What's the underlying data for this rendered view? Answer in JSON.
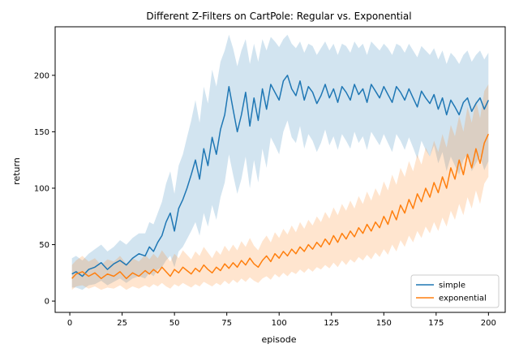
{
  "chart_data": {
    "type": "line",
    "title": "Different Z-Filters on CartPole: Regular vs. Exponential",
    "xlabel": "episode",
    "ylabel": "return",
    "xlim": [
      -7,
      208
    ],
    "ylim": [
      -10,
      243
    ],
    "xticks": [
      0,
      25,
      50,
      75,
      100,
      125,
      150,
      175,
      200
    ],
    "yticks": [
      0,
      50,
      100,
      150,
      200
    ],
    "legend_position": "lower-right",
    "series": [
      {
        "name": "simple",
        "color": "#1f77b4",
        "band_color": "#1f77b4",
        "band_opacity": 0.2,
        "points": [
          [
            1,
            24
          ],
          [
            3,
            26
          ],
          [
            6,
            22
          ],
          [
            9,
            28
          ],
          [
            12,
            30
          ],
          [
            15,
            34
          ],
          [
            18,
            28
          ],
          [
            21,
            33
          ],
          [
            24,
            36
          ],
          [
            27,
            32
          ],
          [
            30,
            38
          ],
          [
            33,
            42
          ],
          [
            36,
            40
          ],
          [
            38,
            48
          ],
          [
            40,
            44
          ],
          [
            42,
            52
          ],
          [
            44,
            58
          ],
          [
            46,
            70
          ],
          [
            48,
            78
          ],
          [
            50,
            62
          ],
          [
            52,
            82
          ],
          [
            54,
            90
          ],
          [
            56,
            100
          ],
          [
            58,
            112
          ],
          [
            60,
            125
          ],
          [
            62,
            108
          ],
          [
            64,
            135
          ],
          [
            66,
            120
          ],
          [
            68,
            145
          ],
          [
            70,
            130
          ],
          [
            72,
            152
          ],
          [
            74,
            165
          ],
          [
            76,
            190
          ],
          [
            78,
            170
          ],
          [
            80,
            150
          ],
          [
            82,
            165
          ],
          [
            84,
            185
          ],
          [
            86,
            155
          ],
          [
            88,
            180
          ],
          [
            90,
            160
          ],
          [
            92,
            188
          ],
          [
            94,
            170
          ],
          [
            96,
            192
          ],
          [
            98,
            185
          ],
          [
            100,
            178
          ],
          [
            102,
            195
          ],
          [
            104,
            200
          ],
          [
            106,
            188
          ],
          [
            108,
            182
          ],
          [
            110,
            195
          ],
          [
            112,
            178
          ],
          [
            114,
            190
          ],
          [
            116,
            185
          ],
          [
            118,
            175
          ],
          [
            120,
            182
          ],
          [
            122,
            192
          ],
          [
            124,
            180
          ],
          [
            126,
            188
          ],
          [
            128,
            176
          ],
          [
            130,
            190
          ],
          [
            132,
            185
          ],
          [
            134,
            178
          ],
          [
            136,
            192
          ],
          [
            138,
            183
          ],
          [
            140,
            188
          ],
          [
            142,
            176
          ],
          [
            144,
            192
          ],
          [
            146,
            186
          ],
          [
            148,
            180
          ],
          [
            150,
            190
          ],
          [
            152,
            183
          ],
          [
            154,
            176
          ],
          [
            156,
            190
          ],
          [
            158,
            185
          ],
          [
            160,
            178
          ],
          [
            162,
            188
          ],
          [
            164,
            180
          ],
          [
            166,
            172
          ],
          [
            168,
            186
          ],
          [
            170,
            180
          ],
          [
            172,
            175
          ],
          [
            174,
            183
          ],
          [
            176,
            170
          ],
          [
            178,
            180
          ],
          [
            180,
            165
          ],
          [
            182,
            178
          ],
          [
            184,
            172
          ],
          [
            186,
            165
          ],
          [
            188,
            176
          ],
          [
            190,
            180
          ],
          [
            192,
            168
          ],
          [
            194,
            175
          ],
          [
            196,
            180
          ],
          [
            198,
            170
          ],
          [
            200,
            178
          ]
        ],
        "lower": [
          12,
          12,
          10,
          14,
          15,
          18,
          14,
          17,
          20,
          16,
          20,
          22,
          20,
          25,
          22,
          28,
          30,
          36,
          40,
          30,
          44,
          48,
          55,
          62,
          70,
          58,
          78,
          66,
          85,
          72,
          92,
          105,
          130,
          112,
          95,
          108,
          128,
          100,
          125,
          105,
          135,
          118,
          145,
          138,
          130,
          150,
          160,
          145,
          140,
          155,
          135,
          148,
          142,
          132,
          140,
          152,
          138,
          146,
          134,
          148,
          142,
          135,
          150,
          140,
          146,
          134,
          150,
          144,
          138,
          148,
          140,
          132,
          148,
          142,
          134,
          145,
          136,
          126,
          142,
          134,
          128,
          138,
          122,
          132,
          115,
          128,
          120,
          112,
          125,
          130,
          115,
          122,
          128,
          116,
          124
        ],
        "upper": [
          38,
          40,
          36,
          42,
          46,
          50,
          44,
          48,
          54,
          50,
          56,
          60,
          60,
          70,
          68,
          78,
          88,
          104,
          115,
          95,
          120,
          130,
          145,
          160,
          178,
          158,
          190,
          175,
          205,
          190,
          212,
          222,
          236,
          224,
          208,
          222,
          232,
          210,
          228,
          212,
          232,
          222,
          234,
          230,
          225,
          232,
          236,
          228,
          224,
          230,
          220,
          228,
          226,
          218,
          224,
          230,
          222,
          228,
          218,
          228,
          226,
          220,
          230,
          224,
          228,
          218,
          230,
          226,
          222,
          228,
          224,
          218,
          228,
          226,
          220,
          228,
          222,
          216,
          226,
          222,
          218,
          224,
          214,
          222,
          210,
          220,
          216,
          210,
          218,
          222,
          212,
          218,
          222,
          214,
          220
        ]
      },
      {
        "name": "exponential",
        "color": "#ff7f0e",
        "band_color": "#ff7f0e",
        "band_opacity": 0.2,
        "points": [
          [
            1,
            20
          ],
          [
            3,
            24
          ],
          [
            6,
            26
          ],
          [
            9,
            22
          ],
          [
            12,
            25
          ],
          [
            15,
            20
          ],
          [
            18,
            24
          ],
          [
            21,
            22
          ],
          [
            24,
            26
          ],
          [
            27,
            20
          ],
          [
            30,
            25
          ],
          [
            33,
            22
          ],
          [
            36,
            27
          ],
          [
            38,
            24
          ],
          [
            40,
            28
          ],
          [
            42,
            25
          ],
          [
            44,
            30
          ],
          [
            46,
            26
          ],
          [
            48,
            22
          ],
          [
            50,
            28
          ],
          [
            52,
            25
          ],
          [
            54,
            30
          ],
          [
            56,
            27
          ],
          [
            58,
            24
          ],
          [
            60,
            29
          ],
          [
            62,
            26
          ],
          [
            64,
            32
          ],
          [
            66,
            28
          ],
          [
            68,
            25
          ],
          [
            70,
            30
          ],
          [
            72,
            27
          ],
          [
            74,
            33
          ],
          [
            76,
            29
          ],
          [
            78,
            34
          ],
          [
            80,
            30
          ],
          [
            82,
            36
          ],
          [
            84,
            32
          ],
          [
            86,
            38
          ],
          [
            88,
            33
          ],
          [
            90,
            30
          ],
          [
            92,
            36
          ],
          [
            94,
            40
          ],
          [
            96,
            35
          ],
          [
            98,
            42
          ],
          [
            100,
            38
          ],
          [
            102,
            44
          ],
          [
            104,
            40
          ],
          [
            106,
            46
          ],
          [
            108,
            42
          ],
          [
            110,
            48
          ],
          [
            112,
            44
          ],
          [
            114,
            50
          ],
          [
            116,
            46
          ],
          [
            118,
            52
          ],
          [
            120,
            48
          ],
          [
            122,
            55
          ],
          [
            124,
            50
          ],
          [
            126,
            58
          ],
          [
            128,
            52
          ],
          [
            130,
            60
          ],
          [
            132,
            55
          ],
          [
            134,
            62
          ],
          [
            136,
            57
          ],
          [
            138,
            65
          ],
          [
            140,
            60
          ],
          [
            142,
            68
          ],
          [
            144,
            62
          ],
          [
            146,
            70
          ],
          [
            148,
            65
          ],
          [
            150,
            75
          ],
          [
            152,
            68
          ],
          [
            154,
            80
          ],
          [
            156,
            72
          ],
          [
            158,
            85
          ],
          [
            160,
            78
          ],
          [
            162,
            90
          ],
          [
            164,
            82
          ],
          [
            166,
            95
          ],
          [
            168,
            88
          ],
          [
            170,
            100
          ],
          [
            172,
            92
          ],
          [
            174,
            105
          ],
          [
            176,
            96
          ],
          [
            178,
            110
          ],
          [
            180,
            100
          ],
          [
            182,
            118
          ],
          [
            184,
            108
          ],
          [
            186,
            125
          ],
          [
            188,
            112
          ],
          [
            190,
            130
          ],
          [
            192,
            118
          ],
          [
            194,
            135
          ],
          [
            196,
            122
          ],
          [
            198,
            140
          ],
          [
            200,
            148
          ]
        ],
        "lower": [
          10,
          13,
          14,
          11,
          13,
          10,
          12,
          11,
          14,
          10,
          13,
          11,
          14,
          12,
          15,
          13,
          16,
          13,
          11,
          15,
          13,
          16,
          14,
          12,
          15,
          13,
          17,
          15,
          13,
          16,
          14,
          18,
          15,
          19,
          16,
          20,
          17,
          21,
          18,
          16,
          20,
          22,
          19,
          24,
          21,
          25,
          22,
          26,
          24,
          28,
          25,
          29,
          26,
          30,
          28,
          32,
          29,
          34,
          30,
          36,
          32,
          37,
          34,
          39,
          36,
          41,
          37,
          43,
          39,
          46,
          41,
          50,
          44,
          54,
          48,
          58,
          52,
          62,
          56,
          66,
          60,
          70,
          62,
          74,
          66,
          80,
          72,
          86,
          76,
          92,
          82,
          98,
          86,
          104,
          110
        ],
        "upper": [
          32,
          36,
          40,
          35,
          38,
          32,
          37,
          35,
          40,
          33,
          38,
          35,
          41,
          37,
          42,
          38,
          45,
          40,
          35,
          42,
          38,
          45,
          41,
          37,
          44,
          40,
          48,
          43,
          38,
          45,
          41,
          49,
          44,
          50,
          45,
          53,
          48,
          56,
          49,
          45,
          53,
          58,
          52,
          61,
          56,
          64,
          59,
          67,
          61,
          70,
          64,
          72,
          67,
          75,
          70,
          79,
          73,
          83,
          76,
          86,
          80,
          89,
          82,
          93,
          86,
          97,
          89,
          100,
          93,
          106,
          98,
          112,
          103,
          118,
          110,
          124,
          115,
          130,
          121,
          136,
          128,
          142,
          132,
          148,
          136,
          156,
          146,
          164,
          150,
          172,
          158,
          178,
          162,
          186,
          192
        ]
      }
    ]
  }
}
